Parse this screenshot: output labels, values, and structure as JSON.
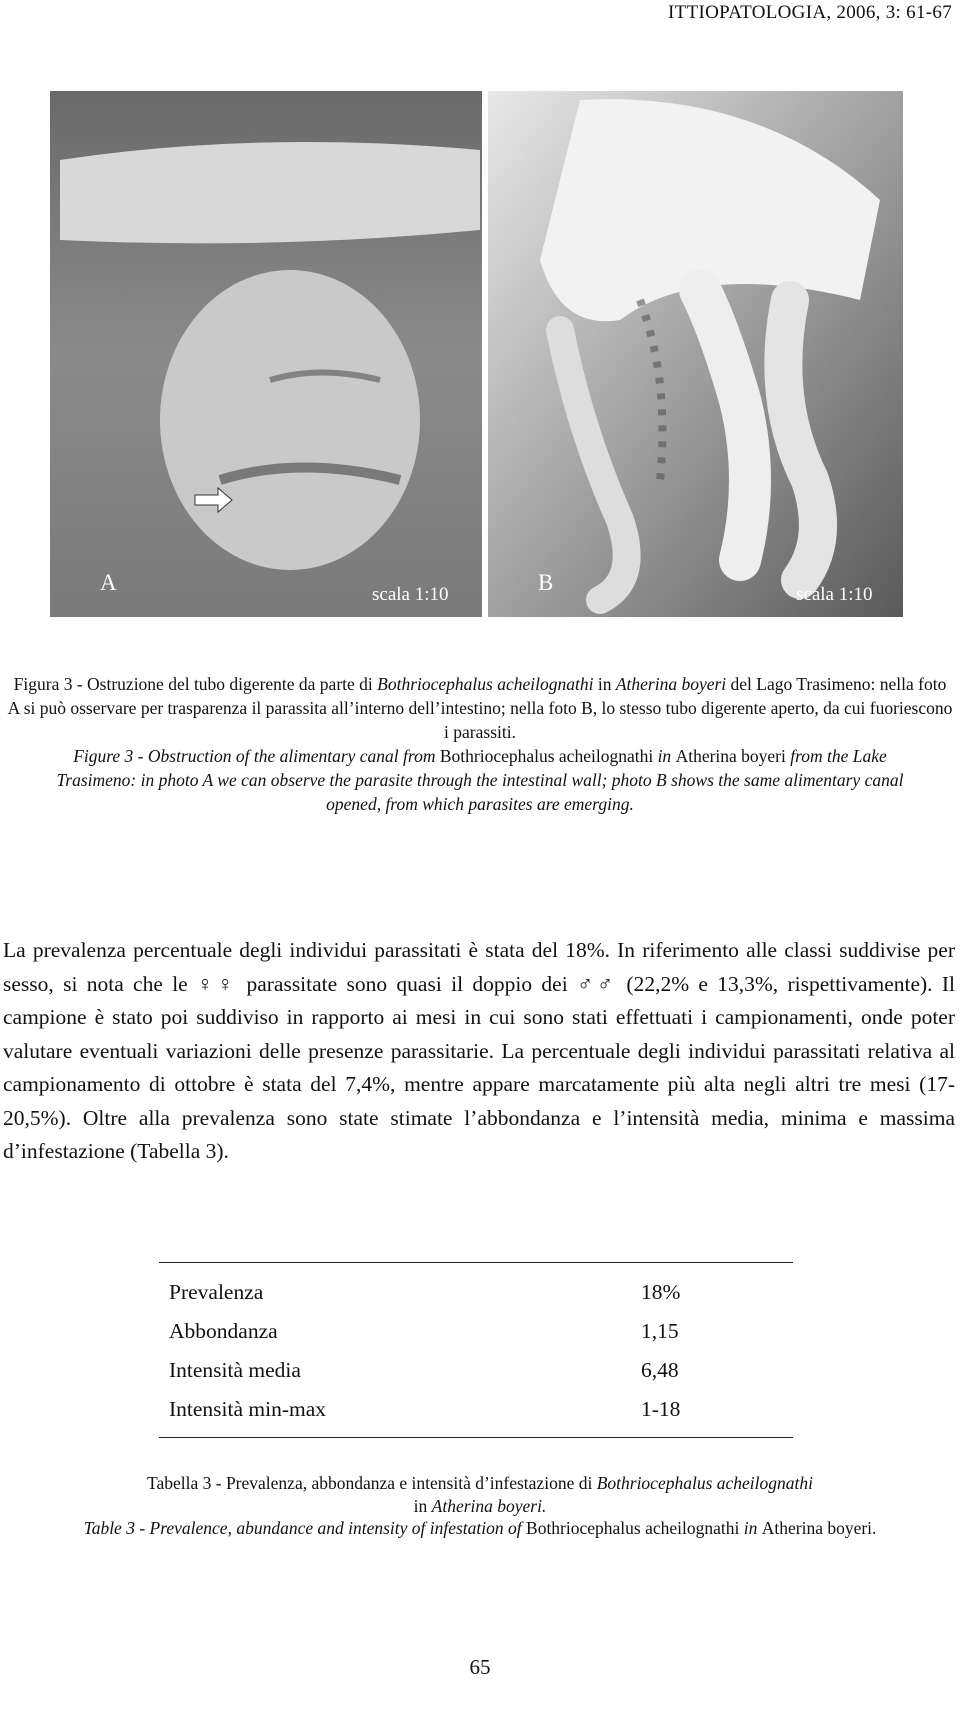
{
  "header": {
    "running_title": "ITTIOPATOLOGIA, 2006, 3: 61-67"
  },
  "figure": {
    "panels": [
      {
        "label": "A",
        "scale": "scala 1:10"
      },
      {
        "label": "B",
        "scale": "scala 1:10"
      }
    ],
    "caption_it": [
      "Figura 3 - Ostruzione del tubo digerente da parte di ",
      "Bothriocephalus acheilognathi",
      " in ",
      "Atherina boyeri",
      " del Lago Trasimeno: nella foto A si può osservare per trasparenza il parassita all’interno dell’intestino; nella foto B, lo stesso tubo digerente aperto, da cui fuoriescono i parassiti."
    ],
    "caption_en": [
      "Figure 3 - Obstruction of the alimentary canal from ",
      "Bothriocephalus acheilognathi",
      " in ",
      "Atherina boyeri",
      " from the Lake Trasimeno: in photo A we can observe the parasite through the intestinal wall; photo B shows the same alimentary canal opened, from which parasites are emerging."
    ]
  },
  "body": {
    "paragraph": "La prevalenza percentuale degli individui parassitati è stata del 18%. In riferimento alle classi suddivise per sesso, si nota che le ♀♀ parassitate sono quasi il doppio dei ♂♂ (22,2% e 13,3%, rispettivamente). Il campione è stato poi suddiviso in rapporto ai mesi in cui sono stati effettuati i campionamenti, onde poter valutare eventuali variazioni delle presenze parassitarie. La percentuale degli individui parassitati relativa al campionamento di ottobre è stata del 7,4%, mentre appare marcatamente più alta negli altri tre mesi (17-20,5%). Oltre alla prevalenza sono state stimate l’abbondanza e l’intensità media, minima e massima d’infestazione (Tabella 3)."
  },
  "table": {
    "rows": [
      [
        "Prevalenza",
        "18%"
      ],
      [
        "Abbondanza",
        "1,15"
      ],
      [
        "Intensità media",
        "6,48"
      ],
      [
        "Intensità min-max",
        "1-18"
      ]
    ],
    "caption_it": [
      "Tabella 3 - Prevalenza, abbondanza e intensità d’infestazione di ",
      "Bothriocephalus acheilognathi",
      " in ",
      "Atherina boyeri."
    ],
    "caption_en": [
      "Table 3 - Prevalence, abundance and intensity of infestation of ",
      "Bothriocephalus acheilognathi",
      " in ",
      "Atherina boyeri."
    ]
  },
  "footer": {
    "page_number": "65"
  }
}
